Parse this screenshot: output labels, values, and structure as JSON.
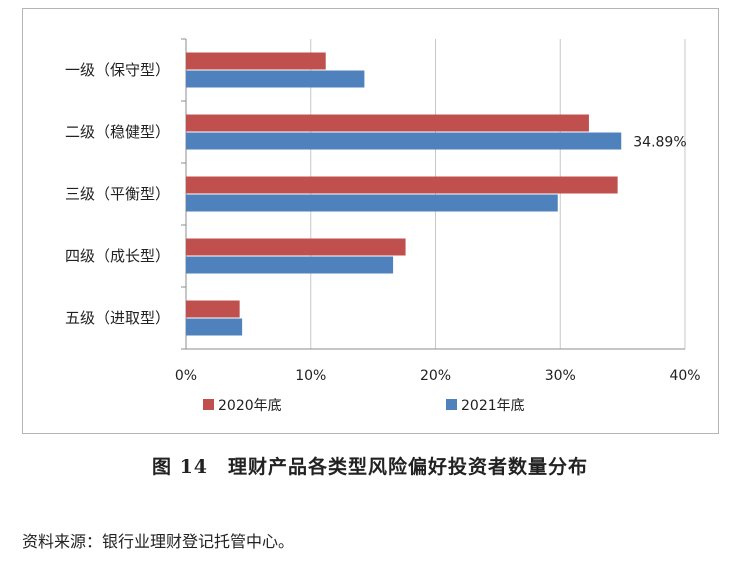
{
  "chart_data": {
    "type": "bar",
    "orientation": "horizontal",
    "categories": [
      "一级（保守型）",
      "二级（稳健型）",
      "三级（平衡型）",
      "四级（成长型）",
      "五级（进取型）"
    ],
    "series": [
      {
        "name": "2020年底",
        "color": "#c0504d",
        "values": [
          11.2,
          32.3,
          34.6,
          17.6,
          4.3
        ]
      },
      {
        "name": "2021年底",
        "color": "#4f81bd",
        "values": [
          14.3,
          34.89,
          29.8,
          16.6,
          4.5
        ]
      }
    ],
    "xlim": [
      0,
      40
    ],
    "xticks": [
      0,
      10,
      20,
      30,
      40
    ],
    "xtick_labels": [
      "0%",
      "10%",
      "20%",
      "30%",
      "40%"
    ],
    "annotations": [
      {
        "text": "34.89%",
        "category": "二级（稳健型）",
        "series": "2021年底"
      }
    ],
    "grid": "vertical",
    "legend_position": "bottom",
    "title": "",
    "xlabel": "",
    "ylabel": ""
  },
  "caption": "图 14　理财产品各类型风险偏好投资者数量分布",
  "source": "资料来源：银行业理财登记托管中心。"
}
